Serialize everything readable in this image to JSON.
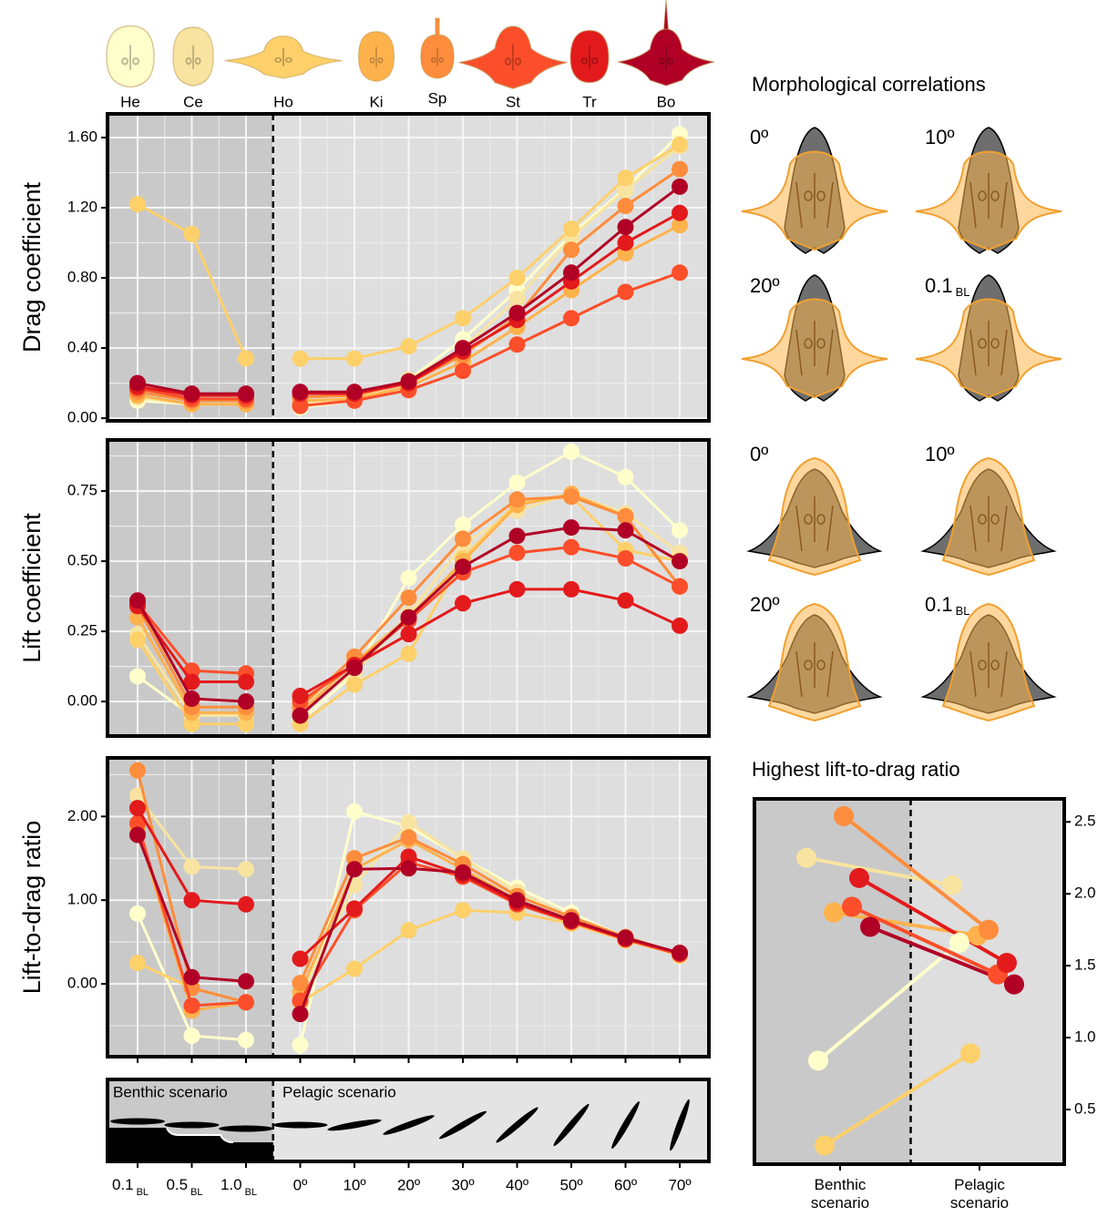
{
  "taxa": [
    {
      "label": "He",
      "color": "#ffffcc"
    },
    {
      "label": "Ce",
      "color": "#f8e4a0"
    },
    {
      "label": "Ho",
      "color": "#fdd06a"
    },
    {
      "label": "Ki",
      "color": "#feb24c"
    },
    {
      "label": "Sp",
      "color": "#fd8d3c"
    },
    {
      "label": "St",
      "color": "#fc4e2a"
    },
    {
      "label": "Tr",
      "color": "#e31a1c"
    },
    {
      "label": "Bo",
      "color": "#b10026"
    }
  ],
  "morphology": {
    "title": "Morphological correlations",
    "labels": [
      "0º",
      "10º",
      "20º",
      "0.1 BL",
      "0º",
      "10º",
      "20º",
      "0.1 BL"
    ]
  },
  "chart_data": [
    {
      "type": "line",
      "y_label": "Drag coefficient",
      "grid": true,
      "ylim": [
        -0.015,
        1.735
      ],
      "yticks": [
        {
          "value": 0,
          "label": "0.00"
        },
        {
          "value": 0.4,
          "label": "0.40"
        },
        {
          "value": 0.8,
          "label": "0.80"
        },
        {
          "value": 1.2,
          "label": "1.20"
        },
        {
          "value": 1.6,
          "label": "1.60"
        }
      ],
      "series": [
        {
          "values": [
            0.1,
            0.08,
            0.08,
            0.06,
            0.1,
            0.22,
            0.45,
            0.73,
            1.05,
            1.31,
            1.62
          ]
        },
        {
          "values": [
            0.12,
            0.08,
            0.08,
            0.08,
            0.12,
            0.22,
            0.4,
            0.68,
            1.03,
            1.3,
            1.55
          ]
        },
        {
          "values": [
            1.22,
            1.05,
            0.34,
            0.34,
            0.34,
            0.41,
            0.57,
            0.8,
            1.08,
            1.37,
            1.56
          ]
        },
        {
          "values": [
            0.13,
            0.08,
            0.08,
            0.1,
            0.11,
            0.18,
            0.32,
            0.52,
            0.73,
            0.94,
            1.1
          ]
        },
        {
          "values": [
            0.15,
            0.1,
            0.1,
            0.12,
            0.13,
            0.2,
            0.36,
            0.58,
            0.96,
            1.21,
            1.42
          ]
        },
        {
          "values": [
            0.17,
            0.11,
            0.11,
            0.07,
            0.1,
            0.16,
            0.27,
            0.42,
            0.57,
            0.72,
            0.83
          ]
        },
        {
          "values": [
            0.18,
            0.13,
            0.13,
            0.14,
            0.14,
            0.2,
            0.38,
            0.56,
            0.78,
            1.0,
            1.17
          ]
        },
        {
          "values": [
            0.2,
            0.14,
            0.14,
            0.15,
            0.15,
            0.21,
            0.4,
            0.6,
            0.83,
            1.09,
            1.32
          ]
        }
      ]
    },
    {
      "type": "line",
      "y_label": "Lift coefficient",
      "grid": true,
      "ylim": [
        -0.123,
        0.932
      ],
      "yticks": [
        {
          "value": 0,
          "label": "0.00"
        },
        {
          "value": 0.25,
          "label": "0.25"
        },
        {
          "value": 0.5,
          "label": "0.50"
        },
        {
          "value": 0.75,
          "label": "0.75"
        }
      ],
      "series": [
        {
          "values": [
            0.09,
            -0.05,
            -0.05,
            -0.07,
            0.1,
            0.44,
            0.63,
            0.78,
            0.89,
            0.8,
            0.61
          ]
        },
        {
          "values": [
            0.24,
            -0.05,
            -0.05,
            -0.01,
            0.1,
            0.31,
            0.56,
            0.68,
            0.74,
            0.67,
            0.53
          ]
        },
        {
          "values": [
            0.22,
            -0.08,
            -0.08,
            -0.08,
            0.06,
            0.17,
            0.51,
            0.71,
            0.73,
            0.54,
            0.5
          ]
        },
        {
          "values": [
            0.3,
            -0.04,
            -0.04,
            -0.04,
            0.14,
            0.3,
            0.5,
            0.7,
            0.74,
            0.66,
            0.41
          ]
        },
        {
          "values": [
            0.34,
            -0.02,
            -0.02,
            -0.02,
            0.16,
            0.37,
            0.58,
            0.72,
            0.73,
            0.66,
            0.41
          ]
        },
        {
          "values": [
            0.35,
            0.11,
            0.1,
            0.0,
            0.13,
            0.29,
            0.46,
            0.53,
            0.55,
            0.51,
            0.41
          ]
        },
        {
          "values": [
            0.34,
            0.07,
            0.07,
            0.02,
            0.13,
            0.24,
            0.35,
            0.4,
            0.4,
            0.36,
            0.27
          ]
        },
        {
          "values": [
            0.36,
            0.01,
            0.0,
            -0.05,
            0.12,
            0.3,
            0.48,
            0.59,
            0.62,
            0.61,
            0.5
          ]
        }
      ]
    },
    {
      "type": "line",
      "y_label": "Lift-to-drag ratio",
      "grid": true,
      "categories": [
        "0.1 BL",
        "0.5 BL",
        "1.0 BL",
        "0º",
        "10º",
        "20º",
        "30º",
        "40º",
        "50º",
        "60º",
        "70º"
      ],
      "scenario_labels": [
        "Benthic scenario",
        "Pelagic scenario"
      ],
      "ylim": [
        -0.87,
        2.7
      ],
      "yticks": [
        {
          "value": 0,
          "label": "0.00"
        },
        {
          "value": 1,
          "label": "1.00"
        },
        {
          "value": 2,
          "label": "2.00"
        }
      ],
      "series": [
        {
          "values": [
            0.84,
            -0.62,
            -0.67,
            -0.73,
            2.06,
            1.88,
            1.5,
            1.15,
            0.85,
            0.55,
            0.35
          ]
        },
        {
          "values": [
            2.25,
            1.4,
            1.37,
            -0.15,
            1.18,
            1.93,
            1.5,
            1.1,
            0.8,
            0.55,
            0.33
          ]
        },
        {
          "values": [
            0.25,
            -0.05,
            -0.22,
            -0.22,
            0.18,
            0.64,
            0.88,
            0.85,
            0.72,
            0.52,
            0.35
          ]
        },
        {
          "values": [
            1.87,
            -0.32,
            -0.22,
            -0.1,
            1.37,
            1.72,
            1.37,
            1.0,
            0.75,
            0.55,
            0.36
          ]
        },
        {
          "values": [
            2.55,
            -0.05,
            -0.22,
            0.01,
            1.5,
            1.75,
            1.43,
            1.05,
            0.8,
            0.56,
            0.36
          ]
        },
        {
          "values": [
            1.92,
            -0.26,
            -0.22,
            -0.2,
            0.88,
            1.45,
            1.28,
            0.95,
            0.74,
            0.53,
            0.35
          ]
        },
        {
          "values": [
            2.1,
            1.0,
            0.95,
            0.3,
            0.9,
            1.52,
            1.3,
            0.97,
            0.75,
            0.54,
            0.37
          ]
        },
        {
          "values": [
            1.78,
            0.08,
            0.03,
            -0.36,
            1.37,
            1.38,
            1.33,
            1.0,
            0.76,
            0.55,
            0.37
          ]
        }
      ]
    },
    {
      "type": "slope",
      "title": "Highest lift-to-drag ratio",
      "categories": [
        "Benthic scenario",
        "Pelagic scenario"
      ],
      "ylim": [
        0.12,
        2.66
      ],
      "yticks": [
        0.5,
        {
          "value": 1,
          "label": "1.0"
        },
        1.5,
        {
          "value": 2,
          "label": "2.0"
        },
        2.5
      ],
      "series": [
        {
          "values": [
            0.84,
            1.66
          ]
        },
        {
          "values": [
            2.25,
            2.06
          ]
        },
        {
          "values": [
            0.25,
            0.89
          ]
        },
        {
          "values": [
            1.87,
            1.71
          ]
        },
        {
          "values": [
            2.54,
            1.75
          ]
        },
        {
          "values": [
            1.91,
            1.44
          ]
        },
        {
          "values": [
            2.11,
            1.52
          ]
        },
        {
          "values": [
            1.77,
            1.37
          ]
        }
      ]
    }
  ]
}
